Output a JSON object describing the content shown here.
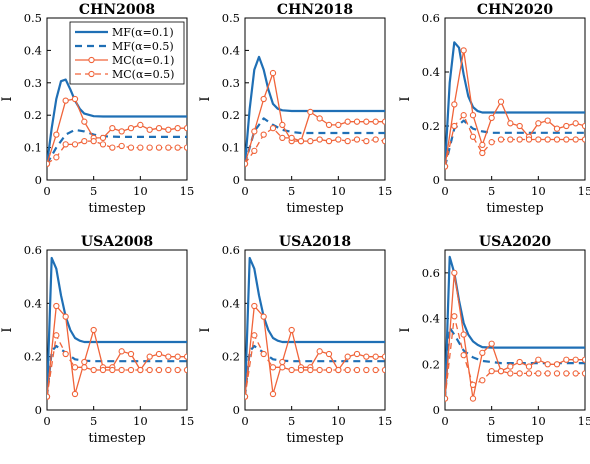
{
  "colors": {
    "MF": "#1f6fb5",
    "MC": "#f0643a",
    "axis": "#000000"
  },
  "legend": {
    "placement": "top-right of first panel",
    "entries": [
      "MF(α=0.1)",
      "MF(α=0.5)",
      "MC(α=0.1)",
      "MC(α=0.5)"
    ]
  },
  "chart_data": [
    {
      "type": "line",
      "title": "CHN2008",
      "xlabel": "timestep",
      "ylabel": "I",
      "xlim": [
        0,
        15
      ],
      "ylim": [
        0,
        0.5
      ],
      "xticks": [
        "0",
        "5",
        "10",
        "15"
      ],
      "yticks": [
        "0",
        "0.1",
        "0.2",
        "0.3",
        "0.4",
        "0.5"
      ],
      "series": [
        {
          "name": "MF(α=0.1)",
          "x": [
            0,
            0.5,
            1,
            1.5,
            2,
            2.5,
            3,
            3.5,
            4,
            5,
            6,
            8,
            10,
            15
          ],
          "y": [
            0.05,
            0.16,
            0.25,
            0.305,
            0.31,
            0.28,
            0.245,
            0.22,
            0.205,
            0.197,
            0.196,
            0.196,
            0.196,
            0.196
          ]
        },
        {
          "name": "MF(α=0.5)",
          "x": [
            0,
            1,
            2,
            3,
            4,
            5,
            6,
            8,
            10,
            15
          ],
          "y": [
            0.05,
            0.1,
            0.14,
            0.155,
            0.15,
            0.14,
            0.135,
            0.133,
            0.133,
            0.133
          ]
        },
        {
          "name": "MC(α=0.1)",
          "x": [
            0,
            1,
            2,
            3,
            4,
            5,
            6,
            7,
            8,
            9,
            10,
            11,
            12,
            13,
            14,
            15
          ],
          "y": [
            0.05,
            0.14,
            0.245,
            0.25,
            0.18,
            0.13,
            0.13,
            0.16,
            0.15,
            0.16,
            0.17,
            0.155,
            0.16,
            0.155,
            0.16,
            0.16
          ]
        },
        {
          "name": "MC(α=0.5)",
          "x": [
            0,
            1,
            2,
            3,
            4,
            5,
            6,
            7,
            8,
            9,
            10,
            11,
            12,
            13,
            14,
            15
          ],
          "y": [
            0.05,
            0.07,
            0.11,
            0.11,
            0.12,
            0.12,
            0.11,
            0.1,
            0.105,
            0.1,
            0.1,
            0.1,
            0.1,
            0.1,
            0.1,
            0.1
          ]
        }
      ]
    },
    {
      "type": "line",
      "title": "CHN2018",
      "xlabel": "timestep",
      "ylabel": "I",
      "xlim": [
        0,
        15
      ],
      "ylim": [
        0,
        0.5
      ],
      "xticks": [
        "0",
        "5",
        "10",
        "15"
      ],
      "yticks": [
        "0",
        "0.1",
        "0.2",
        "0.3",
        "0.4",
        "0.5"
      ],
      "series": [
        {
          "name": "MF(α=0.1)",
          "x": [
            0,
            0.5,
            1,
            1.5,
            2,
            2.5,
            3,
            3.5,
            4,
            5,
            6,
            8,
            15
          ],
          "y": [
            0.05,
            0.22,
            0.34,
            0.38,
            0.34,
            0.28,
            0.235,
            0.22,
            0.215,
            0.213,
            0.213,
            0.213,
            0.213
          ]
        },
        {
          "name": "MF(α=0.5)",
          "x": [
            0,
            1,
            2,
            3,
            4,
            5,
            6,
            8,
            15
          ],
          "y": [
            0.05,
            0.15,
            0.19,
            0.17,
            0.155,
            0.148,
            0.145,
            0.145,
            0.145
          ]
        },
        {
          "name": "MC(α=0.1)",
          "x": [
            0,
            1,
            2,
            3,
            4,
            5,
            6,
            7,
            8,
            9,
            10,
            11,
            12,
            13,
            14,
            15
          ],
          "y": [
            0.05,
            0.15,
            0.25,
            0.33,
            0.17,
            0.12,
            0.12,
            0.21,
            0.19,
            0.17,
            0.17,
            0.18,
            0.18,
            0.18,
            0.18,
            0.18
          ]
        },
        {
          "name": "MC(α=0.5)",
          "x": [
            0,
            1,
            2,
            3,
            4,
            5,
            6,
            7,
            8,
            9,
            10,
            11,
            12,
            13,
            14,
            15
          ],
          "y": [
            0.05,
            0.09,
            0.14,
            0.16,
            0.13,
            0.13,
            0.12,
            0.12,
            0.125,
            0.12,
            0.125,
            0.12,
            0.125,
            0.12,
            0.125,
            0.12
          ]
        }
      ]
    },
    {
      "type": "line",
      "title": "CHN2020",
      "xlabel": "timestep",
      "ylabel": "I",
      "xlim": [
        0,
        15
      ],
      "ylim": [
        0,
        0.6
      ],
      "xticks": [
        "0",
        "5",
        "10",
        "15"
      ],
      "yticks": [
        "0",
        "0.2",
        "0.4",
        "0.6"
      ],
      "series": [
        {
          "name": "MF(α=0.1)",
          "x": [
            0,
            0.5,
            1,
            1.5,
            2,
            2.5,
            3,
            3.5,
            4,
            5,
            6,
            8,
            15
          ],
          "y": [
            0.05,
            0.36,
            0.51,
            0.49,
            0.39,
            0.31,
            0.27,
            0.255,
            0.25,
            0.25,
            0.25,
            0.25,
            0.25
          ]
        },
        {
          "name": "MF(α=0.5)",
          "x": [
            0,
            1,
            2,
            3,
            4,
            5,
            6,
            8,
            15
          ],
          "y": [
            0.05,
            0.19,
            0.22,
            0.19,
            0.18,
            0.175,
            0.175,
            0.175,
            0.175
          ]
        },
        {
          "name": "MC(α=0.1)",
          "x": [
            0,
            1,
            2,
            3,
            4,
            5,
            6,
            7,
            8,
            9,
            10,
            11,
            12,
            13,
            14,
            15
          ],
          "y": [
            0.05,
            0.28,
            0.48,
            0.24,
            0.13,
            0.23,
            0.29,
            0.21,
            0.2,
            0.16,
            0.21,
            0.22,
            0.19,
            0.2,
            0.21,
            0.2
          ]
        },
        {
          "name": "MC(α=0.5)",
          "x": [
            0,
            1,
            2,
            3,
            4,
            5,
            6,
            7,
            8,
            9,
            10,
            11,
            12,
            13,
            14,
            15
          ],
          "y": [
            0.05,
            0.2,
            0.24,
            0.16,
            0.1,
            0.14,
            0.15,
            0.15,
            0.15,
            0.15,
            0.15,
            0.15,
            0.15,
            0.15,
            0.15,
            0.15
          ]
        }
      ]
    },
    {
      "type": "line",
      "title": "USA2008",
      "xlabel": "timestep",
      "ylabel": "I",
      "xlim": [
        0,
        15
      ],
      "ylim": [
        0,
        0.6
      ],
      "xticks": [
        "0",
        "5",
        "10",
        "15"
      ],
      "yticks": [
        "0",
        "0.2",
        "0.4",
        "0.6"
      ],
      "series": [
        {
          "name": "MF(α=0.1)",
          "x": [
            0,
            0.5,
            1,
            1.5,
            2,
            2.5,
            3,
            3.5,
            4,
            5,
            6,
            8,
            15
          ],
          "y": [
            0.05,
            0.57,
            0.53,
            0.43,
            0.35,
            0.3,
            0.27,
            0.26,
            0.255,
            0.255,
            0.255,
            0.255,
            0.255
          ]
        },
        {
          "name": "MF(α=0.5)",
          "x": [
            0,
            0.5,
            1,
            2,
            3,
            4,
            5,
            6,
            8,
            15
          ],
          "y": [
            0.05,
            0.22,
            0.24,
            0.215,
            0.19,
            0.185,
            0.183,
            0.183,
            0.183,
            0.183
          ]
        },
        {
          "name": "MC(α=0.1)",
          "x": [
            0,
            1,
            2,
            3,
            4,
            5,
            6,
            7,
            8,
            9,
            10,
            11,
            12,
            13,
            14,
            15
          ],
          "y": [
            0.05,
            0.39,
            0.35,
            0.06,
            0.18,
            0.3,
            0.16,
            0.16,
            0.22,
            0.21,
            0.15,
            0.2,
            0.21,
            0.2,
            0.2,
            0.2
          ]
        },
        {
          "name": "MC(α=0.5)",
          "x": [
            0,
            1,
            2,
            3,
            4,
            5,
            6,
            7,
            8,
            9,
            10,
            11,
            12,
            13,
            14,
            15
          ],
          "y": [
            0.05,
            0.28,
            0.21,
            0.16,
            0.16,
            0.15,
            0.15,
            0.15,
            0.15,
            0.15,
            0.15,
            0.15,
            0.15,
            0.15,
            0.15,
            0.15
          ]
        }
      ]
    },
    {
      "type": "line",
      "title": "USA2018",
      "xlabel": "timestep",
      "ylabel": "I",
      "xlim": [
        0,
        15
      ],
      "ylim": [
        0,
        0.6
      ],
      "xticks": [
        "0",
        "5",
        "10",
        "15"
      ],
      "yticks": [
        "0",
        "0.2",
        "0.4",
        "0.6"
      ],
      "series": [
        {
          "name": "MF(α=0.1)",
          "x": [
            0,
            0.5,
            1,
            1.5,
            2,
            2.5,
            3,
            3.5,
            4,
            5,
            6,
            8,
            15
          ],
          "y": [
            0.05,
            0.57,
            0.53,
            0.43,
            0.35,
            0.3,
            0.27,
            0.26,
            0.255,
            0.255,
            0.255,
            0.255,
            0.255
          ]
        },
        {
          "name": "MF(α=0.5)",
          "x": [
            0,
            0.5,
            1,
            2,
            3,
            4,
            5,
            6,
            8,
            15
          ],
          "y": [
            0.05,
            0.22,
            0.24,
            0.215,
            0.19,
            0.185,
            0.183,
            0.183,
            0.183,
            0.183
          ]
        },
        {
          "name": "MC(α=0.1)",
          "x": [
            0,
            1,
            2,
            3,
            4,
            5,
            6,
            7,
            8,
            9,
            10,
            11,
            12,
            13,
            14,
            15
          ],
          "y": [
            0.05,
            0.39,
            0.35,
            0.06,
            0.18,
            0.3,
            0.16,
            0.16,
            0.22,
            0.21,
            0.15,
            0.2,
            0.21,
            0.2,
            0.2,
            0.2
          ]
        },
        {
          "name": "MC(α=0.5)",
          "x": [
            0,
            1,
            2,
            3,
            4,
            5,
            6,
            7,
            8,
            9,
            10,
            11,
            12,
            13,
            14,
            15
          ],
          "y": [
            0.05,
            0.28,
            0.21,
            0.16,
            0.16,
            0.15,
            0.15,
            0.15,
            0.15,
            0.15,
            0.15,
            0.15,
            0.15,
            0.15,
            0.15,
            0.15
          ]
        }
      ]
    },
    {
      "type": "line",
      "title": "USA2020",
      "xlabel": "timestep",
      "ylabel": "I",
      "xlim": [
        0,
        15
      ],
      "ylim": [
        0,
        0.7
      ],
      "xticks": [
        "0",
        "5",
        "10",
        "15"
      ],
      "yticks": [
        "0",
        "0.2",
        "0.4",
        "0.6"
      ],
      "series": [
        {
          "name": "MF(α=0.1)",
          "x": [
            0,
            0.5,
            1,
            1.5,
            2,
            2.5,
            3,
            3.5,
            4,
            5,
            6,
            8,
            15
          ],
          "y": [
            0.05,
            0.67,
            0.6,
            0.48,
            0.38,
            0.33,
            0.3,
            0.285,
            0.275,
            0.273,
            0.273,
            0.273,
            0.273
          ]
        },
        {
          "name": "MF(α=0.5)",
          "x": [
            0,
            0.5,
            1,
            2,
            3,
            4,
            5,
            6,
            8,
            15
          ],
          "y": [
            0.05,
            0.36,
            0.33,
            0.26,
            0.23,
            0.215,
            0.21,
            0.205,
            0.205,
            0.205
          ]
        },
        {
          "name": "MC(α=0.1)",
          "x": [
            0,
            1,
            2,
            3,
            4,
            5,
            6,
            7,
            8,
            9,
            10,
            11,
            12,
            13,
            14,
            15
          ],
          "y": [
            0.05,
            0.6,
            0.33,
            0.05,
            0.25,
            0.29,
            0.17,
            0.19,
            0.21,
            0.19,
            0.22,
            0.2,
            0.2,
            0.22,
            0.22,
            0.22
          ]
        },
        {
          "name": "MC(α=0.5)",
          "x": [
            0,
            1,
            2,
            3,
            4,
            5,
            6,
            7,
            8,
            9,
            10,
            11,
            12,
            13,
            14,
            15
          ],
          "y": [
            0.05,
            0.41,
            0.24,
            0.11,
            0.13,
            0.17,
            0.17,
            0.16,
            0.16,
            0.16,
            0.16,
            0.16,
            0.16,
            0.16,
            0.16,
            0.16
          ]
        }
      ]
    }
  ]
}
